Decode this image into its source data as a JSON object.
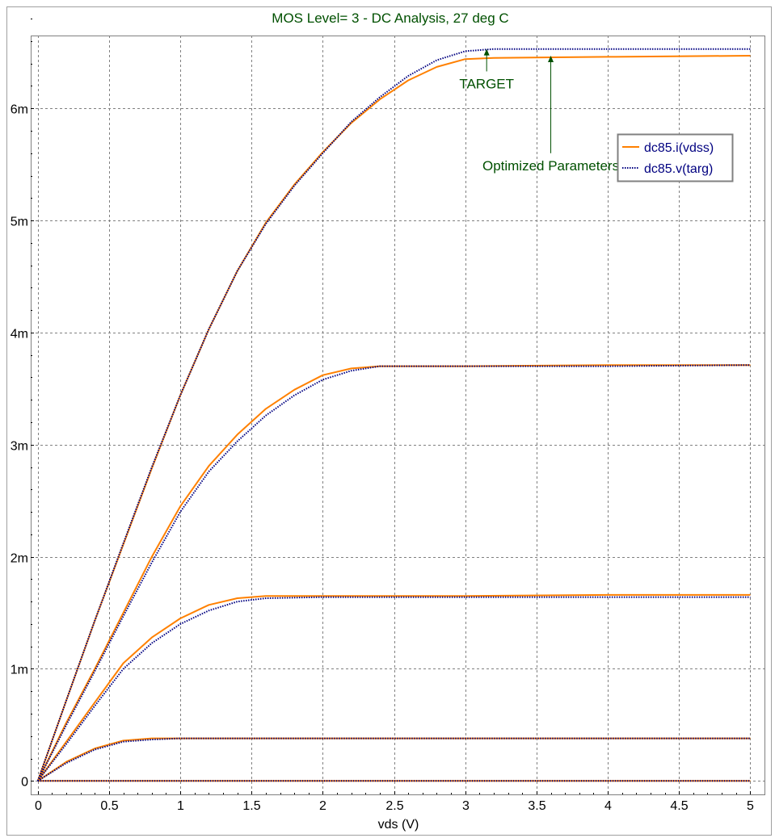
{
  "chart_data": {
    "type": "line",
    "title": "MOS Level= 3  -  DC Analysis, 27 deg C",
    "xlabel": "vds (V)",
    "ylabel": "",
    "xlim": [
      -0.05,
      5.1
    ],
    "ylim": [
      -0.00012,
      0.00665
    ],
    "grid": true,
    "legend_position": "top-right",
    "x_ticks": [
      {
        "value": 0,
        "label": "0"
      },
      {
        "value": 0.5,
        "label": "0.5"
      },
      {
        "value": 1,
        "label": "1"
      },
      {
        "value": 1.5,
        "label": "1.5"
      },
      {
        "value": 2,
        "label": "2"
      },
      {
        "value": 2.5,
        "label": "2.5"
      },
      {
        "value": 3,
        "label": "3"
      },
      {
        "value": 3.5,
        "label": "3.5"
      },
      {
        "value": 4,
        "label": "4"
      },
      {
        "value": 4.5,
        "label": "4.5"
      },
      {
        "value": 5,
        "label": "5"
      }
    ],
    "y_ticks": [
      {
        "value": 0,
        "label": "0"
      },
      {
        "value": 0.001,
        "label": "1m"
      },
      {
        "value": 0.002,
        "label": "2m"
      },
      {
        "value": 0.003,
        "label": "3m"
      },
      {
        "value": 0.004,
        "label": "4m"
      },
      {
        "value": 0.005,
        "label": "5m"
      },
      {
        "value": 0.006,
        "label": "6m"
      }
    ],
    "series": [
      {
        "name": "dc85.i(vdss)",
        "color": "#ff8000",
        "dash": "solid",
        "curves": [
          {
            "x": [
              0,
              5
            ],
            "y": [
              0,
              0
            ]
          },
          {
            "x": [
              0,
              0.2,
              0.4,
              0.6,
              0.8,
              1,
              2,
              3,
              4,
              5
            ],
            "y": [
              0,
              0.00017,
              0.00029,
              0.00036,
              0.00038,
              0.00038,
              0.00038,
              0.00038,
              0.00038,
              0.00038
            ]
          },
          {
            "x": [
              0,
              0.2,
              0.4,
              0.6,
              0.8,
              1,
              1.2,
              1.4,
              1.6,
              2,
              3,
              4,
              5
            ],
            "y": [
              0,
              0.00035,
              0.0007,
              0.00105,
              0.00128,
              0.00145,
              0.00157,
              0.00163,
              0.00165,
              0.00165,
              0.00165,
              0.00166,
              0.00166
            ]
          },
          {
            "x": [
              0,
              0.2,
              0.4,
              0.6,
              0.8,
              1,
              1.2,
              1.4,
              1.6,
              1.8,
              2,
              2.2,
              2.4,
              3,
              4,
              5
            ],
            "y": [
              0,
              0.00052,
              0.001,
              0.0015,
              0.002,
              0.00245,
              0.00281,
              0.00309,
              0.00332,
              0.00349,
              0.00362,
              0.00368,
              0.0037,
              0.0037,
              0.00371,
              0.00371
            ]
          },
          {
            "x": [
              0,
              0.2,
              0.4,
              0.6,
              0.8,
              1,
              1.2,
              1.4,
              1.6,
              1.8,
              2,
              2.2,
              2.4,
              2.6,
              2.8,
              3,
              3.2,
              4,
              5
            ],
            "y": [
              0,
              0.00072,
              0.00143,
              0.00211,
              0.00279,
              0.00344,
              0.00403,
              0.00455,
              0.00498,
              0.00532,
              0.00561,
              0.00587,
              0.00608,
              0.00625,
              0.00637,
              0.00644,
              0.00645,
              0.00646,
              0.00647
            ]
          }
        ]
      },
      {
        "name": "dc85.v(targ)",
        "color": "#000080",
        "dash": "dotted",
        "curves": [
          {
            "x": [
              0,
              5
            ],
            "y": [
              0,
              0
            ]
          },
          {
            "x": [
              0,
              0.2,
              0.4,
              0.6,
              0.8,
              1,
              2,
              3,
              4,
              5
            ],
            "y": [
              0,
              0.00016,
              0.00028,
              0.00035,
              0.00037,
              0.00038,
              0.00038,
              0.00038,
              0.00038,
              0.00038
            ]
          },
          {
            "x": [
              0,
              0.2,
              0.4,
              0.6,
              0.8,
              1,
              1.2,
              1.4,
              1.6,
              2,
              3,
              4,
              5
            ],
            "y": [
              0,
              0.00033,
              0.00067,
              0.001,
              0.00123,
              0.0014,
              0.00152,
              0.0016,
              0.00163,
              0.00164,
              0.00164,
              0.00164,
              0.00164
            ]
          },
          {
            "x": [
              0,
              0.2,
              0.4,
              0.6,
              0.8,
              1,
              1.2,
              1.4,
              1.6,
              1.8,
              2,
              2.2,
              2.4,
              3,
              4,
              5
            ],
            "y": [
              0,
              0.0005,
              0.00098,
              0.00147,
              0.00195,
              0.0024,
              0.00276,
              0.00303,
              0.00326,
              0.00344,
              0.00358,
              0.00366,
              0.0037,
              0.0037,
              0.0037,
              0.00371
            ]
          },
          {
            "x": [
              0,
              0.2,
              0.4,
              0.6,
              0.8,
              1,
              1.2,
              1.4,
              1.6,
              1.8,
              2,
              2.2,
              2.4,
              2.6,
              2.8,
              3,
              3.2,
              4,
              5
            ],
            "y": [
              0,
              0.00072,
              0.00143,
              0.00212,
              0.0028,
              0.00344,
              0.00403,
              0.00455,
              0.00497,
              0.00531,
              0.0056,
              0.00588,
              0.0061,
              0.00629,
              0.00643,
              0.00651,
              0.00653,
              0.00653,
              0.00653
            ]
          }
        ]
      }
    ],
    "annotations": [
      {
        "text": "TARGET",
        "color": "#005000",
        "arrow_x": 3.15,
        "arrow_tip_y": 0.00653,
        "arrow_tail_y": 0.00633
      },
      {
        "text": "Optimized Parameters",
        "color": "#005000",
        "arrow_x": 3.6,
        "arrow_tip_y": 0.00647,
        "arrow_tail_y": 0.0056
      }
    ]
  },
  "colors": {
    "title": "#005000",
    "grid": "#808080",
    "frame": "#808080",
    "legend_text": "#000080"
  }
}
